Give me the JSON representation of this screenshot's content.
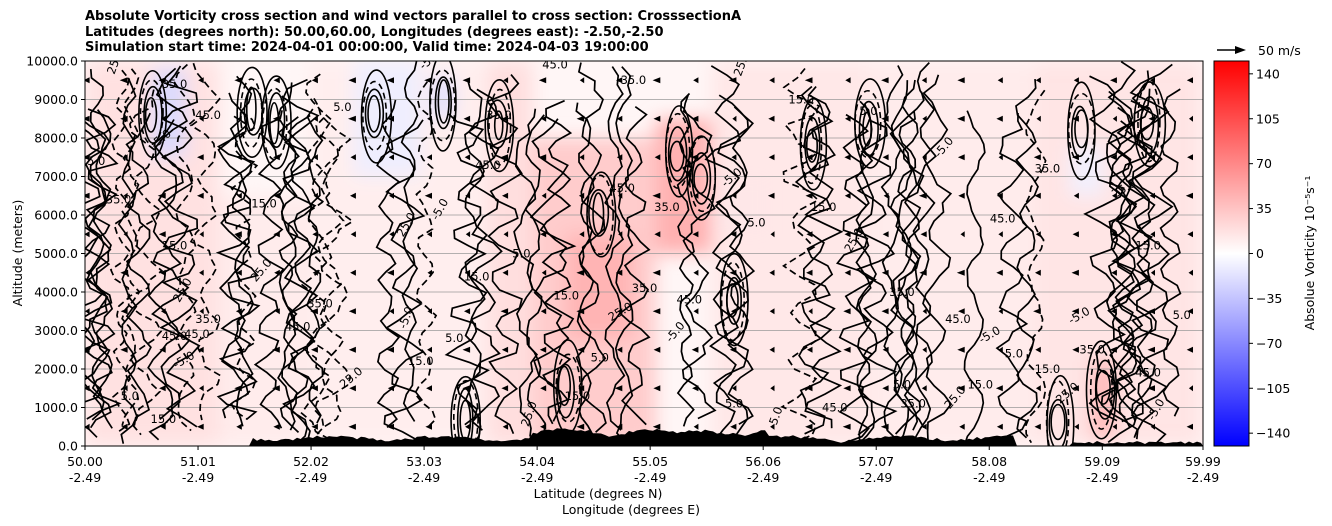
{
  "title_lines": [
    "Absolute Vorticity cross section and wind vectors parallel to cross section: CrosssectionA",
    "Latitudes (degrees north): 50.00,60.00, Longitudes (degrees east): -2.50,-2.50",
    "Simulation start time: 2024-04-01 00:00:00, Valid time: 2024-04-03 19:00:00"
  ],
  "reference_vector_label": "50 m/s",
  "colorbar": {
    "label": "Absolue Vorticity 10⁻⁵s⁻¹",
    "ticks": [
      "140",
      "105",
      "70",
      "35",
      "0",
      "−35",
      "−70",
      "−105",
      "−140"
    ],
    "range": [
      -150,
      150
    ],
    "colors": {
      "negative": "#0000ff",
      "zero": "#ffffff",
      "positive": "#ff0000"
    }
  },
  "chart_data": {
    "type": "heatmap",
    "ylabel": "Altitude (meters)",
    "xlabel_lines": [
      "Latitude (degrees N)",
      "Longitude (degrees E)"
    ],
    "ylim": [
      0,
      10000
    ],
    "xlim": [
      50.0,
      59.99
    ],
    "y_ticks": [
      "0.0",
      "1000.0",
      "2000.0",
      "3000.0",
      "4000.0",
      "5000.0",
      "6000.0",
      "7000.0",
      "8000.0",
      "9000.0",
      "10000.0"
    ],
    "x_ticks": [
      {
        "lat": "50.00",
        "lon": "-2.49"
      },
      {
        "lat": "51.01",
        "lon": "-2.49"
      },
      {
        "lat": "52.02",
        "lon": "-2.49"
      },
      {
        "lat": "53.03",
        "lon": "-2.49"
      },
      {
        "lat": "54.04",
        "lon": "-2.49"
      },
      {
        "lat": "55.05",
        "lon": "-2.49"
      },
      {
        "lat": "56.06",
        "lon": "-2.49"
      },
      {
        "lat": "57.07",
        "lon": "-2.49"
      },
      {
        "lat": "58.08",
        "lon": "-2.49"
      },
      {
        "lat": "59.09",
        "lon": "-2.49"
      },
      {
        "lat": "59.99",
        "lon": "-2.49"
      }
    ],
    "grid": "horizontal",
    "contour_labels": [
      "-5.0",
      "5.0",
      "15.0",
      "25.0",
      "35.0",
      "45.0"
    ],
    "vorticity_regions": [
      {
        "lat": [
          50.0,
          51.2
        ],
        "alt": [
          0,
          10000
        ],
        "value": 18
      },
      {
        "lat": [
          50.6,
          50.9
        ],
        "alt": [
          7500,
          9800
        ],
        "value": -22
      },
      {
        "lat": [
          51.2,
          52.0
        ],
        "alt": [
          0,
          6500
        ],
        "value": 12
      },
      {
        "lat": [
          51.4,
          52.0
        ],
        "alt": [
          6500,
          10000
        ],
        "value": 5
      },
      {
        "lat": [
          52.0,
          53.6
        ],
        "alt": [
          0,
          10000
        ],
        "value": 10
      },
      {
        "lat": [
          52.4,
          53.0
        ],
        "alt": [
          7000,
          10000
        ],
        "value": -10
      },
      {
        "lat": [
          53.1,
          53.3
        ],
        "alt": [
          8500,
          9600
        ],
        "value": -18
      },
      {
        "lat": [
          53.6,
          54.0
        ],
        "alt": [
          0,
          10000
        ],
        "value": 20
      },
      {
        "lat": [
          54.0,
          55.1
        ],
        "alt": [
          0,
          8000
        ],
        "value": 32
      },
      {
        "lat": [
          54.3,
          54.9
        ],
        "alt": [
          2800,
          5500
        ],
        "value": 45
      },
      {
        "lat": [
          55.1,
          55.6
        ],
        "alt": [
          5000,
          8500
        ],
        "value": 48
      },
      {
        "lat": [
          55.6,
          56.1
        ],
        "alt": [
          5500,
          7000
        ],
        "value": -12
      },
      {
        "lat": [
          55.6,
          57.0
        ],
        "alt": [
          0,
          10000
        ],
        "value": 14
      },
      {
        "lat": [
          57.0,
          58.5
        ],
        "alt": [
          0,
          10000
        ],
        "value": 12
      },
      {
        "lat": [
          58.5,
          59.99
        ],
        "alt": [
          0,
          10000
        ],
        "value": 16
      },
      {
        "lat": [
          59.0,
          59.2
        ],
        "alt": [
          200,
          2200
        ],
        "value": 45
      },
      {
        "lat": [
          58.8,
          59.1
        ],
        "alt": [
          6500,
          7800
        ],
        "value": -8
      }
    ],
    "wind_direction": "westward"
  }
}
